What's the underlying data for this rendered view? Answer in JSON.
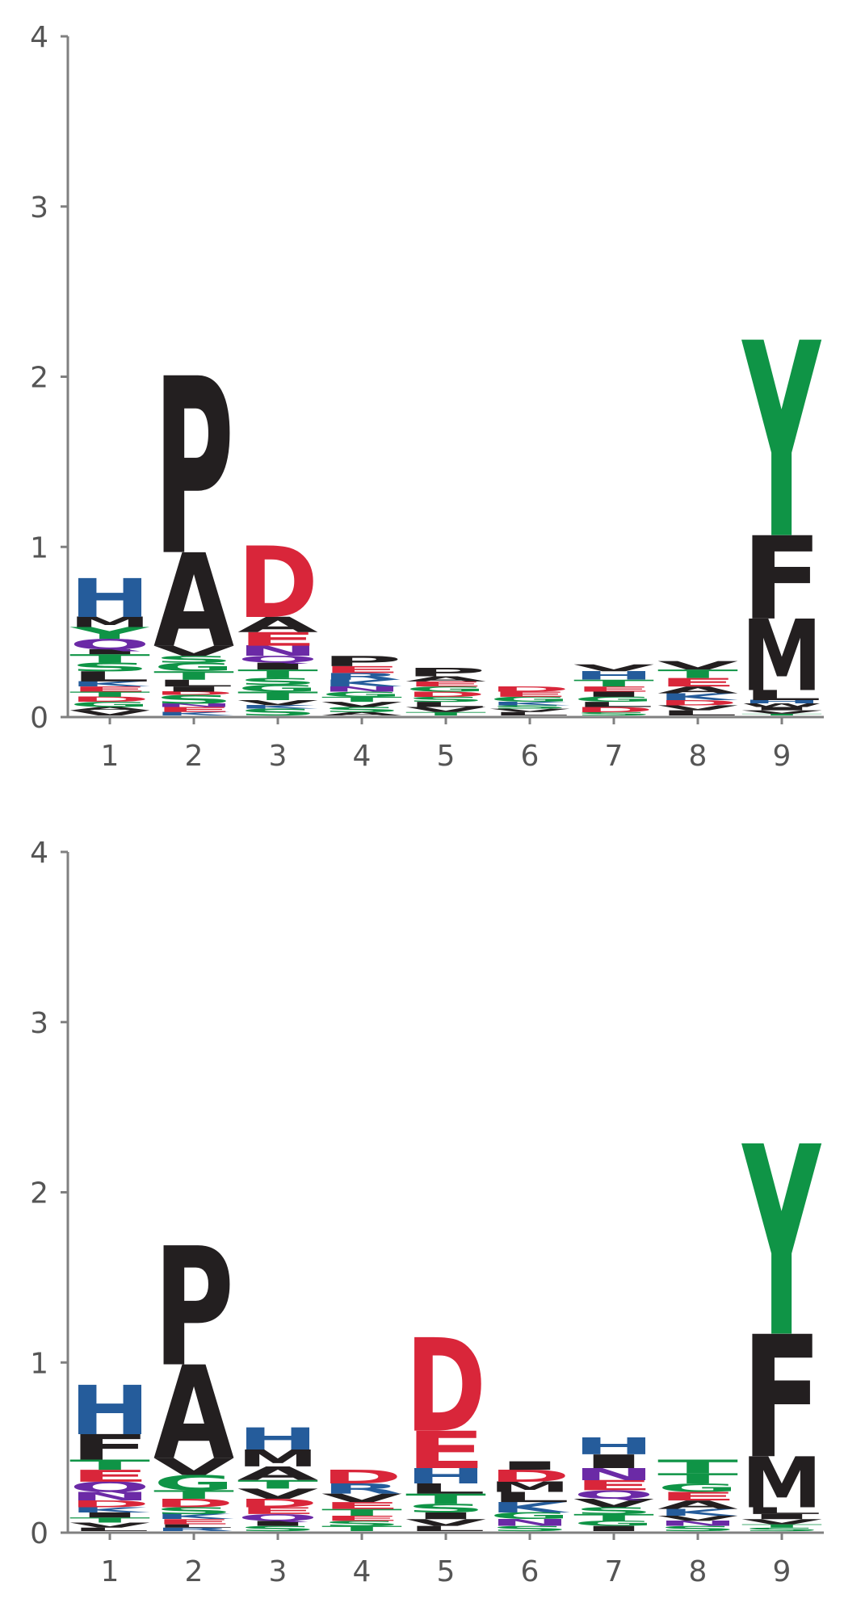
{
  "colors": {
    "black": "#231f20",
    "blue": "#255c9b",
    "red": "#d9263a",
    "green": "#0f9446",
    "purple": "#6b2aa6",
    "axis": "#808080",
    "tick_text": "#555555"
  },
  "chart_data": [
    {
      "type": "sequence-logo",
      "ylim": [
        0,
        4
      ],
      "y_ticks": [
        "0",
        "1",
        "2",
        "3",
        "4"
      ],
      "positions": [
        "1",
        "2",
        "3",
        "4",
        "5",
        "6",
        "7",
        "8",
        "9"
      ],
      "stacks": [
        [
          [
            "V",
            0.03,
            "black"
          ],
          [
            "A",
            0.02,
            "black"
          ],
          [
            "G",
            0.03,
            "green"
          ],
          [
            "D",
            0.03,
            "red"
          ],
          [
            "T",
            0.03,
            "green"
          ],
          [
            "E",
            0.03,
            "red"
          ],
          [
            "K",
            0.03,
            "blue"
          ],
          [
            "L",
            0.06,
            "black"
          ],
          [
            "S",
            0.05,
            "green"
          ],
          [
            "T",
            0.05,
            "green"
          ],
          [
            "I",
            0.03,
            "black"
          ],
          [
            "Q",
            0.06,
            "purple"
          ],
          [
            "Y",
            0.07,
            "green"
          ],
          [
            "M",
            0.06,
            "black"
          ],
          [
            "H",
            0.23,
            "blue"
          ]
        ],
        [
          [
            "K",
            0.02,
            "blue"
          ],
          [
            "E",
            0.03,
            "red"
          ],
          [
            "N",
            0.02,
            "purple"
          ],
          [
            "S",
            0.05,
            "green"
          ],
          [
            "D",
            0.02,
            "red"
          ],
          [
            "I",
            0.03,
            "black"
          ],
          [
            "L",
            0.04,
            "black"
          ],
          [
            "T",
            0.05,
            "green"
          ],
          [
            "G",
            0.05,
            "green"
          ],
          [
            "S",
            0.04,
            "green"
          ],
          [
            "V",
            0.06,
            "black"
          ],
          [
            "A",
            0.55,
            "black"
          ],
          [
            "P",
            1.04,
            "black"
          ]
        ],
        [
          [
            "S",
            0.04,
            "green"
          ],
          [
            "K",
            0.02,
            "blue"
          ],
          [
            "V",
            0.03,
            "black"
          ],
          [
            "T",
            0.05,
            "green"
          ],
          [
            "G",
            0.04,
            "green"
          ],
          [
            "S",
            0.04,
            "green"
          ],
          [
            "T",
            0.05,
            "green"
          ],
          [
            "I",
            0.04,
            "black"
          ],
          [
            "Q",
            0.04,
            "purple"
          ],
          [
            "N",
            0.06,
            "purple"
          ],
          [
            "E",
            0.08,
            "red"
          ],
          [
            "A",
            0.09,
            "black"
          ],
          [
            "D",
            0.42,
            "red"
          ]
        ],
        [
          [
            "A",
            0.02,
            "black"
          ],
          [
            "S",
            0.03,
            "green"
          ],
          [
            "V",
            0.03,
            "black"
          ],
          [
            "T",
            0.03,
            "green"
          ],
          [
            "G",
            0.03,
            "green"
          ],
          [
            "N",
            0.03,
            "purple"
          ],
          [
            "K",
            0.04,
            "blue"
          ],
          [
            "R",
            0.04,
            "blue"
          ],
          [
            "E",
            0.04,
            "red"
          ],
          [
            "P",
            0.06,
            "black"
          ]
        ],
        [
          [
            "T",
            0.02,
            "green"
          ],
          [
            "V",
            0.03,
            "black"
          ],
          [
            "L",
            0.03,
            "black"
          ],
          [
            "S",
            0.03,
            "green"
          ],
          [
            "D",
            0.03,
            "red"
          ],
          [
            "G",
            0.03,
            "green"
          ],
          [
            "E",
            0.03,
            "red"
          ],
          [
            "A",
            0.03,
            "black"
          ],
          [
            "P",
            0.05,
            "black"
          ]
        ],
        [
          [
            "L",
            0.02,
            "black"
          ],
          [
            "V",
            0.02,
            "black"
          ],
          [
            "S",
            0.02,
            "green"
          ],
          [
            "K",
            0.02,
            "blue"
          ],
          [
            "G",
            0.03,
            "green"
          ],
          [
            "E",
            0.03,
            "red"
          ],
          [
            "D",
            0.03,
            "red"
          ]
        ],
        [
          [
            "S",
            0.02,
            "green"
          ],
          [
            "D",
            0.03,
            "red"
          ],
          [
            "L",
            0.03,
            "black"
          ],
          [
            "G",
            0.03,
            "green"
          ],
          [
            "I",
            0.03,
            "black"
          ],
          [
            "E",
            0.03,
            "red"
          ],
          [
            "T",
            0.04,
            "green"
          ],
          [
            "H",
            0.05,
            "blue"
          ],
          [
            "V",
            0.04,
            "black"
          ]
        ],
        [
          [
            "L",
            0.03,
            "black"
          ],
          [
            "V",
            0.03,
            "black"
          ],
          [
            "D",
            0.03,
            "red"
          ],
          [
            "K",
            0.04,
            "blue"
          ],
          [
            "A",
            0.04,
            "black"
          ],
          [
            "E",
            0.05,
            "red"
          ],
          [
            "T",
            0.05,
            "green"
          ],
          [
            "V",
            0.05,
            "black"
          ]
        ],
        [
          [
            "T",
            0.01,
            "green"
          ],
          [
            "V",
            0.02,
            "black"
          ],
          [
            "I",
            0.02,
            "black"
          ],
          [
            "W",
            0.02,
            "black"
          ],
          [
            "H",
            0.02,
            "blue"
          ],
          [
            "L",
            0.06,
            "black"
          ],
          [
            "M",
            0.42,
            "black"
          ],
          [
            "F",
            0.49,
            "black"
          ],
          [
            "Y",
            1.15,
            "green"
          ]
        ]
      ]
    },
    {
      "type": "sequence-logo",
      "ylim": [
        0,
        4
      ],
      "y_ticks": [
        "0",
        "1",
        "2",
        "3",
        "4"
      ],
      "positions": [
        "1",
        "2",
        "3",
        "4",
        "5",
        "6",
        "7",
        "8",
        "9"
      ],
      "stacks": [
        [
          [
            "L",
            0.02,
            "black"
          ],
          [
            "V",
            0.03,
            "black"
          ],
          [
            "T",
            0.03,
            "green"
          ],
          [
            "I",
            0.03,
            "black"
          ],
          [
            "K",
            0.03,
            "blue"
          ],
          [
            "D",
            0.04,
            "red"
          ],
          [
            "N",
            0.05,
            "purple"
          ],
          [
            "Q",
            0.06,
            "purple"
          ],
          [
            "E",
            0.07,
            "red"
          ],
          [
            "T",
            0.06,
            "green"
          ],
          [
            "F",
            0.15,
            "black"
          ],
          [
            "H",
            0.29,
            "blue"
          ]
        ],
        [
          [
            "R",
            0.02,
            "blue"
          ],
          [
            "L",
            0.02,
            "black"
          ],
          [
            "E",
            0.03,
            "red"
          ],
          [
            "K",
            0.03,
            "blue"
          ],
          [
            "S",
            0.04,
            "green"
          ],
          [
            "D",
            0.05,
            "red"
          ],
          [
            "T",
            0.05,
            "green"
          ],
          [
            "G",
            0.09,
            "green"
          ],
          [
            "V",
            0.1,
            "black"
          ],
          [
            "A",
            0.55,
            "black"
          ],
          [
            "P",
            0.7,
            "black"
          ]
        ],
        [
          [
            "S",
            0.03,
            "green"
          ],
          [
            "I",
            0.03,
            "black"
          ],
          [
            "Q",
            0.04,
            "purple"
          ],
          [
            "E",
            0.04,
            "red"
          ],
          [
            "D",
            0.05,
            "red"
          ],
          [
            "V",
            0.06,
            "black"
          ],
          [
            "T",
            0.05,
            "green"
          ],
          [
            "A",
            0.08,
            "black"
          ],
          [
            "M",
            0.1,
            "black"
          ],
          [
            "H",
            0.13,
            "blue"
          ]
        ],
        [
          [
            "T",
            0.03,
            "green"
          ],
          [
            "S",
            0.03,
            "green"
          ],
          [
            "E",
            0.03,
            "red"
          ],
          [
            "T",
            0.04,
            "green"
          ],
          [
            "E",
            0.04,
            "red"
          ],
          [
            "V",
            0.05,
            "black"
          ],
          [
            "R",
            0.06,
            "blue"
          ],
          [
            "D",
            0.08,
            "red"
          ]
        ],
        [
          [
            "L",
            0.03,
            "black"
          ],
          [
            "V",
            0.04,
            "black"
          ],
          [
            "I",
            0.04,
            "black"
          ],
          [
            "S",
            0.05,
            "green"
          ],
          [
            "T",
            0.06,
            "green"
          ],
          [
            "L",
            0.06,
            "black"
          ],
          [
            "H",
            0.09,
            "blue"
          ],
          [
            "E",
            0.22,
            "red"
          ],
          [
            "D",
            0.55,
            "red"
          ]
        ],
        [
          [
            "S",
            0.03,
            "green"
          ],
          [
            "N",
            0.04,
            "purple"
          ],
          [
            "G",
            0.04,
            "green"
          ],
          [
            "K",
            0.06,
            "blue"
          ],
          [
            "L",
            0.06,
            "black"
          ],
          [
            "M",
            0.06,
            "black"
          ],
          [
            "D",
            0.07,
            "red"
          ],
          [
            "I",
            0.05,
            "black"
          ]
        ],
        [
          [
            "I",
            0.03,
            "black"
          ],
          [
            "G",
            0.03,
            "green"
          ],
          [
            "T",
            0.04,
            "green"
          ],
          [
            "S",
            0.04,
            "green"
          ],
          [
            "V",
            0.05,
            "black"
          ],
          [
            "Q",
            0.05,
            "purple"
          ],
          [
            "E",
            0.06,
            "red"
          ],
          [
            "N",
            0.07,
            "purple"
          ],
          [
            "I",
            0.08,
            "black"
          ],
          [
            "H",
            0.1,
            "blue"
          ]
        ],
        [
          [
            "S",
            0.03,
            "green"
          ],
          [
            "N",
            0.03,
            "purple"
          ],
          [
            "V",
            0.03,
            "black"
          ],
          [
            "K",
            0.04,
            "blue"
          ],
          [
            "A",
            0.05,
            "black"
          ],
          [
            "E",
            0.05,
            "red"
          ],
          [
            "G",
            0.05,
            "green"
          ],
          [
            "T",
            0.06,
            "green"
          ],
          [
            "T",
            0.08,
            "green"
          ]
        ],
        [
          [
            "S",
            0.02,
            "green"
          ],
          [
            "T",
            0.02,
            "green"
          ],
          [
            "V",
            0.03,
            "black"
          ],
          [
            "I",
            0.03,
            "black"
          ],
          [
            "L",
            0.04,
            "black"
          ],
          [
            "M",
            0.3,
            "black"
          ],
          [
            "F",
            0.72,
            "black"
          ],
          [
            "Y",
            1.12,
            "green"
          ]
        ]
      ]
    }
  ]
}
